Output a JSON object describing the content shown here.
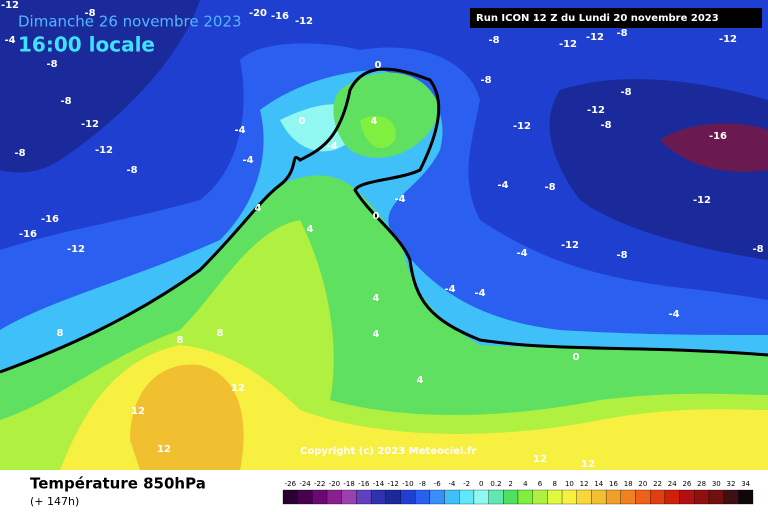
{
  "header": {
    "date": "Dimanche 26 novembre 2023",
    "time": "16:00 locale",
    "run": "Run ICON 12 Z du Lundi 20 novembre 2023"
  },
  "footer": {
    "title": "Température 850hPa",
    "subtitle": "(+ 147h)"
  },
  "copyright": "Copyright (c) 2023 Meteociel.fr",
  "map_labels": [
    "-12",
    "-8",
    "-20",
    "-16",
    "-12",
    "-4",
    "-8",
    "-8",
    "-12",
    "-12",
    "-12",
    "-12",
    "-8",
    "-8",
    "-12",
    "-8",
    "-12",
    "-8",
    "-16",
    "-8",
    "-16",
    "-16",
    "-12",
    "-8",
    "-12",
    "-8",
    "-8",
    "-4",
    "-8",
    "-4",
    "-4",
    "-4",
    "0",
    "0",
    "-4",
    "4",
    "4",
    "4",
    "0",
    "-4",
    "-4",
    "-4",
    "-4",
    "4",
    "4",
    "4",
    "0",
    "8",
    "8",
    "8",
    "12",
    "12",
    "12",
    "12",
    "12",
    "-8",
    "-12",
    "-12"
  ],
  "legend": {
    "labels": [
      "-26",
      "-24",
      "-22",
      "-20",
      "-18",
      "-16",
      "-14",
      "-12",
      "-10",
      "-8",
      "-6",
      "-4",
      "-2",
      "0",
      "0.2",
      "2",
      "4",
      "6",
      "8",
      "10",
      "12",
      "14",
      "16",
      "18",
      "20",
      "22",
      "24",
      "26",
      "28",
      "30",
      "32",
      "34"
    ],
    "colors": [
      "#2a0030",
      "#4a0050",
      "#6a0a70",
      "#8a2090",
      "#9a40b0",
      "#6040c0",
      "#3030b0",
      "#1a2a9a",
      "#1e3fd0",
      "#2a5ff0",
      "#3a8ef8",
      "#40c0f8",
      "#60e8f8",
      "#90f8f0",
      "#60e8b0",
      "#50e060",
      "#80f040",
      "#b0f040",
      "#e0f840",
      "#f8f040",
      "#f8d838",
      "#f0c030",
      "#f0a028",
      "#f08020",
      "#f06018",
      "#e04010",
      "#d02008",
      "#b01010",
      "#901010",
      "#701010",
      "#401010",
      "#100808"
    ]
  }
}
